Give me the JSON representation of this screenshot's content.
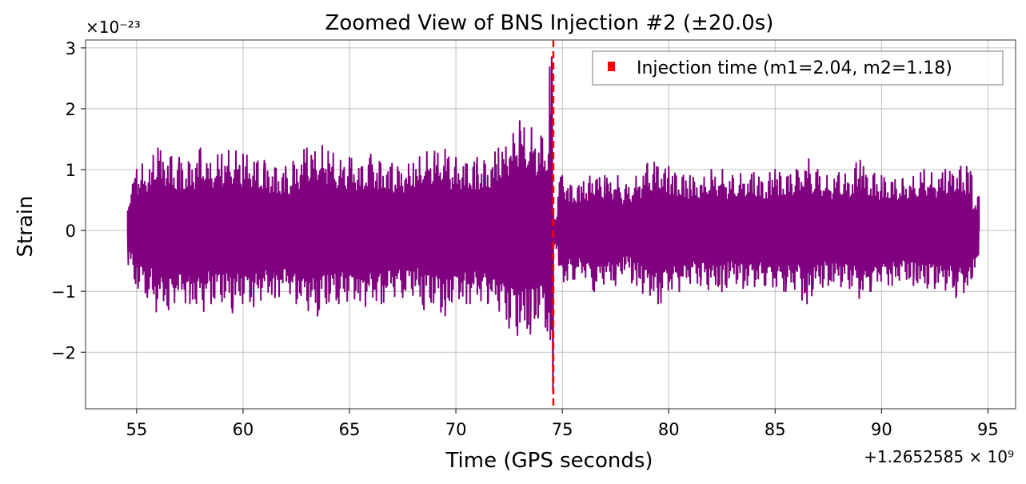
{
  "chart_data": {
    "type": "line",
    "title": "Zoomed View of BNS Injection #2 (±20.0s)",
    "xlabel": "Time (GPS seconds)",
    "ylabel": "Strain",
    "x_offset_label": "+1.2652585 × 10⁹",
    "y_scale_label": "×10⁻²³",
    "xlim": [
      52.6,
      96.3
    ],
    "ylim": [
      -2.93,
      3.13
    ],
    "x_ticks": [
      55,
      60,
      65,
      70,
      75,
      80,
      85,
      90,
      95
    ],
    "y_ticks": [
      -2,
      -1,
      0,
      1,
      2,
      3
    ],
    "grid": true,
    "legend_position": "top-right",
    "series": [
      {
        "kind": "strain",
        "color": "#800080",
        "x_start": 54.58,
        "x_end": 94.58,
        "points": [
          [
            54.58,
            0.0
          ],
          [
            55.0,
            1.0
          ],
          [
            55.5,
            -1.1
          ],
          [
            56.0,
            1.35
          ],
          [
            56.5,
            -1.3
          ],
          [
            57.0,
            1.2
          ],
          [
            57.5,
            -1.2
          ],
          [
            58.0,
            1.35
          ],
          [
            58.5,
            -1.2
          ],
          [
            59.0,
            1.25
          ],
          [
            59.5,
            -1.35
          ],
          [
            60.0,
            1.25
          ],
          [
            60.5,
            -1.25
          ],
          [
            61.0,
            1.15
          ],
          [
            61.5,
            -1.1
          ],
          [
            62.0,
            1.05
          ],
          [
            62.5,
            -1.2
          ],
          [
            63.0,
            1.35
          ],
          [
            63.5,
            -1.4
          ],
          [
            64.0,
            1.3
          ],
          [
            64.5,
            -1.2
          ],
          [
            65.0,
            1.2
          ],
          [
            65.5,
            -1.15
          ],
          [
            66.0,
            1.25
          ],
          [
            66.5,
            -1.2
          ],
          [
            67.0,
            1.1
          ],
          [
            67.5,
            -1.1
          ],
          [
            68.0,
            1.1
          ],
          [
            68.5,
            -1.3
          ],
          [
            69.0,
            1.3
          ],
          [
            69.5,
            -1.4
          ],
          [
            70.0,
            1.2
          ],
          [
            70.5,
            -1.2
          ],
          [
            71.0,
            1.2
          ],
          [
            71.5,
            -1.2
          ],
          [
            72.0,
            1.35
          ],
          [
            72.5,
            -1.6
          ],
          [
            73.0,
            1.8
          ],
          [
            73.5,
            -1.7
          ],
          [
            74.0,
            1.55
          ],
          [
            74.3,
            -1.65
          ],
          [
            74.5,
            2.85
          ],
          [
            74.56,
            -2.65
          ],
          [
            74.58,
            0.3
          ],
          [
            75.0,
            0.9
          ],
          [
            75.5,
            -0.8
          ],
          [
            76.0,
            0.8
          ],
          [
            76.5,
            -1.0
          ],
          [
            77.0,
            0.9
          ],
          [
            77.5,
            -0.9
          ],
          [
            78.0,
            0.75
          ],
          [
            78.5,
            -0.9
          ],
          [
            79.0,
            1.1
          ],
          [
            79.5,
            -1.2
          ],
          [
            80.0,
            1.05
          ],
          [
            80.5,
            -1.0
          ],
          [
            81.0,
            0.9
          ],
          [
            81.5,
            -0.9
          ],
          [
            82.0,
            1.0
          ],
          [
            82.5,
            -1.0
          ],
          [
            83.0,
            0.9
          ],
          [
            83.5,
            -0.95
          ],
          [
            84.0,
            0.95
          ],
          [
            84.5,
            -0.9
          ],
          [
            85.0,
            1.0
          ],
          [
            85.5,
            -1.0
          ],
          [
            86.0,
            1.0
          ],
          [
            86.5,
            -1.2
          ],
          [
            87.0,
            1.0
          ],
          [
            87.5,
            -0.9
          ],
          [
            88.0,
            0.95
          ],
          [
            88.5,
            -0.95
          ],
          [
            89.0,
            1.15
          ],
          [
            89.5,
            -1.0
          ],
          [
            90.0,
            0.9
          ],
          [
            90.5,
            -0.9
          ],
          [
            91.0,
            0.85
          ],
          [
            91.5,
            -0.9
          ],
          [
            92.0,
            1.0
          ],
          [
            92.5,
            -0.95
          ],
          [
            93.0,
            1.0
          ],
          [
            93.5,
            -1.1
          ],
          [
            94.0,
            1.05
          ],
          [
            94.58,
            0.0
          ]
        ]
      },
      {
        "name": "Injection time (m1=2.04, m2=1.18)",
        "kind": "vertical-dashed",
        "color": "#ff0000",
        "x": 74.58
      }
    ]
  }
}
